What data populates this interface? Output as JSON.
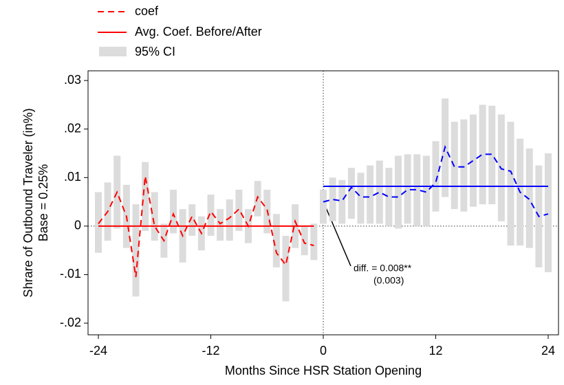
{
  "chart_data": {
    "type": "event-study",
    "x_label": "Months Since HSR Station Opening",
    "y_label": [
      "Shrare of Outbound Traveler (in%)",
      "Base = 0.25%"
    ],
    "xlim": [
      -25.1,
      25.1
    ],
    "ylim": [
      -0.0224,
      0.032
    ],
    "xticks": [
      -24,
      -12,
      0,
      12,
      24
    ],
    "yticks": [
      {
        "value": 0.03,
        "label": ".03"
      },
      {
        "value": 0.02,
        "label": ".02"
      },
      {
        "value": 0.01,
        "label": ".01"
      },
      0,
      {
        "value": -0.01,
        "label": "-.01"
      },
      {
        "value": -0.02,
        "label": "-.02"
      }
    ],
    "coef": {
      "name": "coef",
      "periods": [
        {
          "color": "#ff0000",
          "x": [
            -24,
            -23,
            -22,
            -21,
            -20,
            -19,
            -18,
            -17,
            -16,
            -15,
            -14,
            -13,
            -12,
            -11,
            -10,
            -9,
            -8,
            -7,
            -6,
            -5,
            -4,
            -3,
            -2,
            -1
          ],
          "values": [
            0.0005,
            0.003,
            0.007,
            0.002,
            -0.0105,
            0.0103,
            0,
            -0.003,
            0.0025,
            -0.002,
            0.002,
            -0.0015,
            0.003,
            0.0005,
            0.0017,
            0.0035,
            0,
            0.006,
            0.0035,
            -0.0055,
            -0.008,
            0.001,
            -0.0035,
            -0.004
          ],
          "ci_low": [
            -0.0055,
            -0.003,
            -0.0005,
            -0.0045,
            -0.0145,
            -0.001,
            -0.003,
            -0.0065,
            -0.0015,
            -0.0075,
            -0.002,
            -0.005,
            -0.002,
            -0.003,
            -0.003,
            -0.001,
            -0.0035,
            0.002,
            -0.0015,
            -0.0085,
            -0.0155,
            -0.0045,
            -0.006,
            -0.007
          ],
          "ci_high": [
            0.007,
            0.009,
            0.0145,
            0.0085,
            0.0045,
            0.0132,
            0.007,
            0.0005,
            0.0075,
            0.0035,
            0.0045,
            0.002,
            0.0065,
            0.0035,
            0.0055,
            0.0075,
            0.0035,
            0.0093,
            0.0075,
            0.0025,
            -0.002,
            0.0045,
            0,
            0.0005
          ]
        },
        {
          "color": "#0000ff",
          "x": [
            0,
            1,
            2,
            3,
            4,
            5,
            6,
            7,
            8,
            9,
            10,
            11,
            12,
            13,
            14,
            15,
            16,
            17,
            18,
            19,
            20,
            21,
            22,
            23,
            24
          ],
          "values": [
            0.005,
            0.0055,
            0.0052,
            0.008,
            0.006,
            0.006,
            0.007,
            0.006,
            0.006,
            0.0075,
            0.0075,
            0.007,
            0.009,
            0.0163,
            0.0122,
            0.0122,
            0.0135,
            0.0148,
            0.0148,
            0.0118,
            0.0113,
            0.007,
            0.0055,
            0.002,
            0.0025
          ],
          "ci_low": [
            0.0005,
            0.001,
            0.0005,
            0.0015,
            0.0005,
            0.0005,
            0.0005,
            0,
            -0.0005,
            0.0005,
            0,
            0,
            0.003,
            0.006,
            0.0035,
            0.003,
            0.004,
            0.0045,
            0.0045,
            0.001,
            -0.004,
            -0.004,
            -0.0045,
            -0.0085,
            -0.0095
          ],
          "ci_high": [
            0.0075,
            0.01,
            0.0095,
            0.012,
            0.011,
            0.0125,
            0.0135,
            0.012,
            0.0145,
            0.0148,
            0.0148,
            0.0145,
            0.0175,
            0.0263,
            0.0215,
            0.022,
            0.023,
            0.025,
            0.0248,
            0.023,
            0.0215,
            0.018,
            0.016,
            0.0125,
            0.015
          ]
        }
      ]
    },
    "average": {
      "name": "Avg. Coef. Before/After",
      "periods": [
        {
          "color": "#ff0000",
          "x": [
            -24,
            -1
          ],
          "value": 0
        },
        {
          "color": "#0000ff",
          "x": [
            0,
            24
          ],
          "value": 0.0082
        }
      ]
    },
    "ci": {
      "name": "95% CI",
      "color": "#dcdcdc"
    },
    "annotation": {
      "text": "diff. =  0.008**",
      "se": "(0.003)"
    }
  }
}
